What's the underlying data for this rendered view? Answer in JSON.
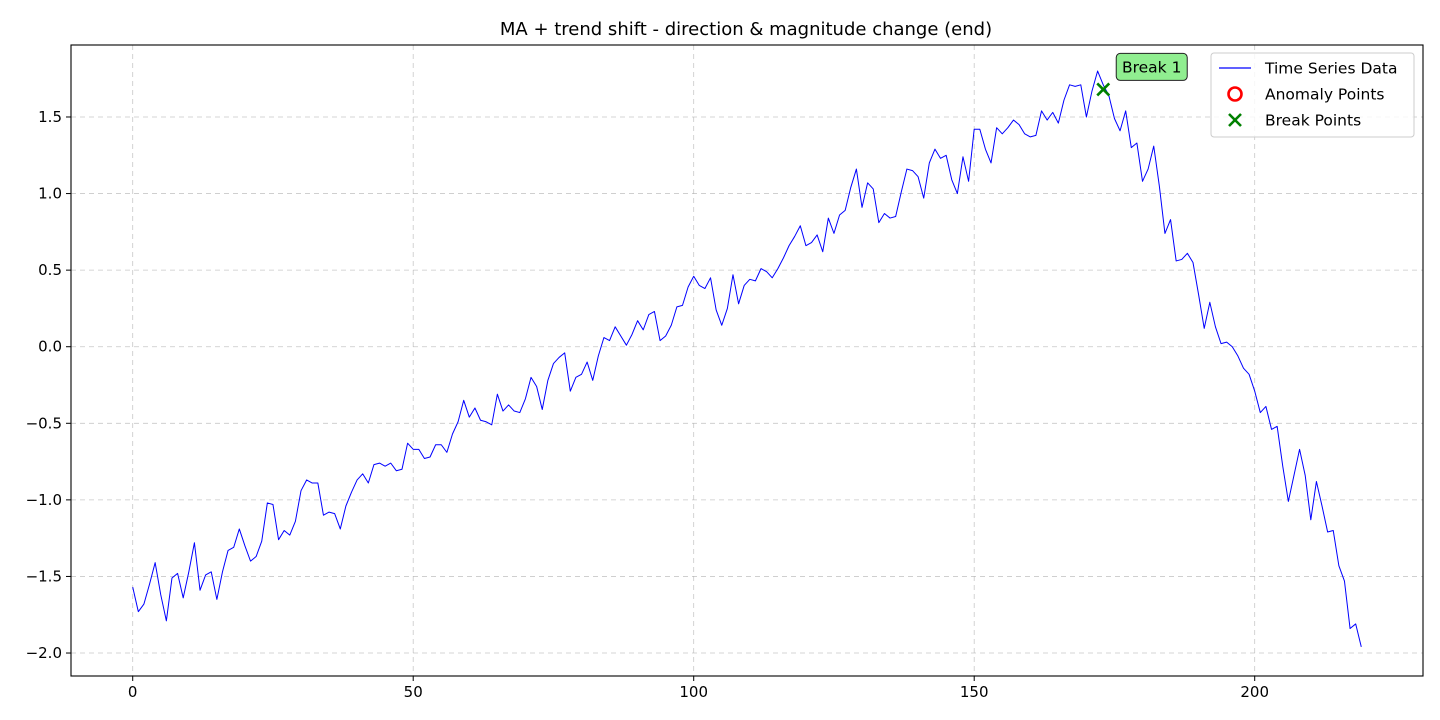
{
  "chart_data": {
    "type": "line",
    "title": "MA + trend shift - direction & magnitude change (end)",
    "xlabel": "",
    "ylabel": "",
    "xlim": [
      -11,
      230
    ],
    "ylim": [
      -2.15,
      1.97
    ],
    "xticks": [
      0,
      50,
      100,
      150,
      200
    ],
    "yticks": [
      1.5,
      1.0,
      0.5,
      0.0,
      -0.5,
      -1.0,
      -1.5,
      -2.0
    ],
    "ytick_labels": [
      "1.5",
      "1.0",
      "0.5",
      "0.0",
      "−0.5",
      "−1.0",
      "−1.5",
      "−2.0"
    ],
    "grid": true,
    "legend_position": "top-right",
    "series": [
      {
        "name": "Time Series Data",
        "color": "#0000ff",
        "x_start": 0,
        "x_step": 1,
        "values": [
          -1.57,
          -1.73,
          -1.68,
          -1.55,
          -1.41,
          -1.62,
          -1.79,
          -1.51,
          -1.48,
          -1.64,
          -1.47,
          -1.28,
          -1.59,
          -1.49,
          -1.47,
          -1.65,
          -1.47,
          -1.33,
          -1.31,
          -1.19,
          -1.3,
          -1.4,
          -1.37,
          -1.27,
          -1.02,
          -1.03,
          -1.26,
          -1.2,
          -1.23,
          -1.14,
          -0.94,
          -0.87,
          -0.89,
          -0.89,
          -1.1,
          -1.08,
          -1.09,
          -1.19,
          -1.04,
          -0.95,
          -0.87,
          -0.83,
          -0.89,
          -0.77,
          -0.76,
          -0.78,
          -0.76,
          -0.81,
          -0.8,
          -0.63,
          -0.67,
          -0.67,
          -0.73,
          -0.72,
          -0.64,
          -0.64,
          -0.69,
          -0.57,
          -0.49,
          -0.35,
          -0.46,
          -0.4,
          -0.48,
          -0.49,
          -0.51,
          -0.31,
          -0.42,
          -0.38,
          -0.42,
          -0.43,
          -0.34,
          -0.2,
          -0.26,
          -0.41,
          -0.22,
          -0.11,
          -0.07,
          -0.04,
          -0.29,
          -0.2,
          -0.18,
          -0.1,
          -0.22,
          -0.06,
          0.06,
          0.04,
          0.13,
          0.07,
          0.01,
          0.08,
          0.17,
          0.11,
          0.21,
          0.23,
          0.04,
          0.07,
          0.14,
          0.26,
          0.27,
          0.39,
          0.46,
          0.4,
          0.38,
          0.45,
          0.24,
          0.14,
          0.25,
          0.47,
          0.28,
          0.4,
          0.44,
          0.43,
          0.51,
          0.49,
          0.45,
          0.51,
          0.58,
          0.66,
          0.72,
          0.79,
          0.66,
          0.68,
          0.73,
          0.62,
          0.84,
          0.74,
          0.86,
          0.89,
          1.04,
          1.16,
          0.91,
          1.07,
          1.03,
          0.81,
          0.87,
          0.84,
          0.85,
          1.01,
          1.16,
          1.15,
          1.11,
          0.97,
          1.2,
          1.29,
          1.23,
          1.25,
          1.09,
          1.0,
          1.24,
          1.08,
          1.42,
          1.42,
          1.29,
          1.2,
          1.43,
          1.39,
          1.43,
          1.48,
          1.45,
          1.39,
          1.37,
          1.38,
          1.54,
          1.48,
          1.53,
          1.46,
          1.61,
          1.71,
          1.7,
          1.71,
          1.5,
          1.67,
          1.8,
          1.71,
          1.64,
          1.49,
          1.41,
          1.54,
          1.3,
          1.33,
          1.08,
          1.16,
          1.31,
          1.05,
          0.74,
          0.83,
          0.56,
          0.57,
          0.61,
          0.55,
          0.34,
          0.12,
          0.29,
          0.13,
          0.02,
          0.03,
          0.0,
          -0.06,
          -0.14,
          -0.18,
          -0.29,
          -0.43,
          -0.39,
          -0.54,
          -0.52,
          -0.78,
          -1.01,
          -0.84,
          -0.67,
          -0.84,
          -1.13,
          -0.88,
          -1.04,
          -1.21,
          -1.2,
          -1.43,
          -1.53,
          -1.84,
          -1.81,
          -1.96
        ]
      },
      {
        "name": "Anomaly Points",
        "marker": "circle",
        "color": "#ff0000",
        "points": []
      },
      {
        "name": "Break Points",
        "marker": "x",
        "color": "#008000",
        "points": [
          {
            "x": 173,
            "y": 1.68
          }
        ]
      }
    ],
    "annotations": [
      {
        "text": "Break 1",
        "x": 173,
        "y": 1.68,
        "background": "#90ee90"
      }
    ]
  }
}
